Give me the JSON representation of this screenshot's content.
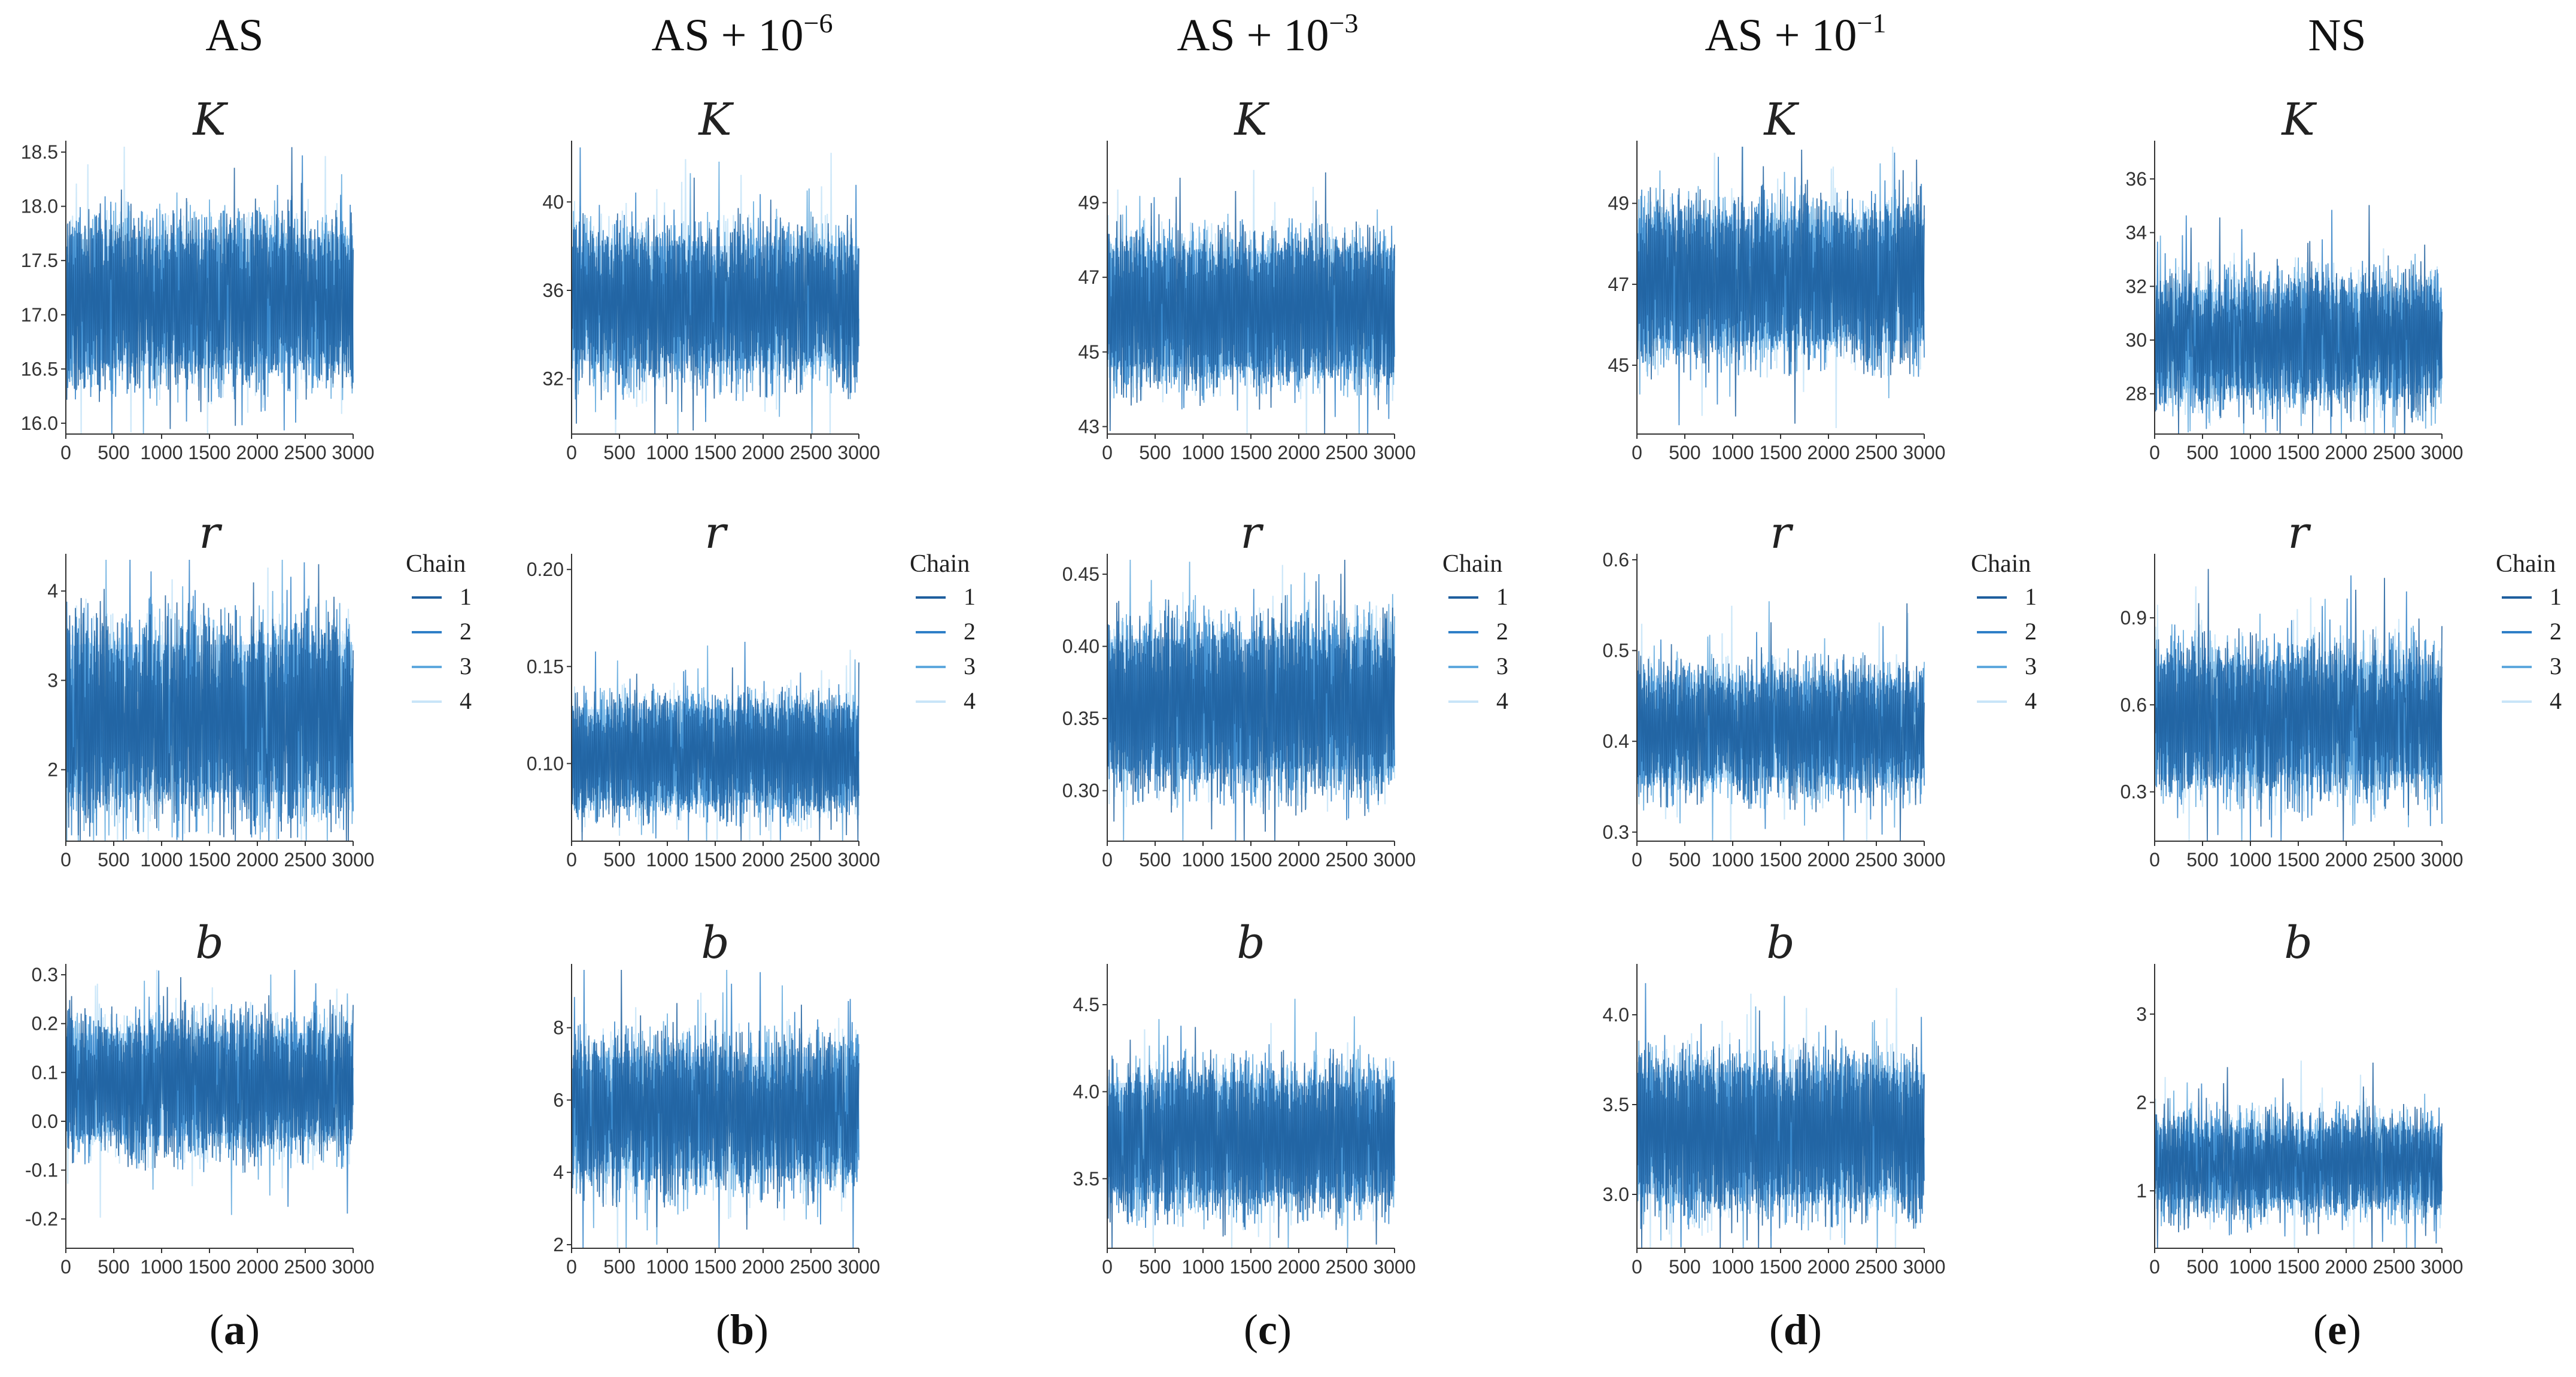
{
  "column_titles": [
    {
      "base": "AS",
      "sup": ""
    },
    {
      "base": "AS + 10",
      "sup": "−6"
    },
    {
      "base": "AS + 10",
      "sup": "−3"
    },
    {
      "base": "AS + 10",
      "sup": "−1"
    },
    {
      "base": "NS",
      "sup": ""
    }
  ],
  "panel_labels": [
    "a",
    "b",
    "c",
    "d",
    "e"
  ],
  "legend": {
    "title": "Chain",
    "entries": [
      "1",
      "2",
      "3",
      "4"
    ]
  },
  "colors": {
    "chain_1": "#1f5f9e",
    "chain_2": "#2e7fc7",
    "chain_3": "#5ea8dd",
    "chain_4": "#c9e5f8",
    "band": "#c7e3fb"
  },
  "chart_data": [
    {
      "type": "line",
      "column": "AS",
      "panel": "a",
      "title": "K",
      "xlim": [
        0,
        3000
      ],
      "x_ticks": [
        "0",
        "500",
        "1000",
        "1500",
        "2000",
        "2500",
        "3000"
      ],
      "ylim": [
        15.9,
        18.55
      ],
      "y_ticks": [
        "16.0",
        "16.5",
        "17.0",
        "17.5",
        "18.0",
        "18.5"
      ],
      "y_tick_values": [
        16.0,
        16.5,
        17.0,
        17.5,
        18.0,
        18.5
      ],
      "upper_mode": 17.7,
      "lower_mode": 16.55,
      "spread": 0.18,
      "series": [
        "1",
        "2",
        "3",
        "4"
      ]
    },
    {
      "type": "line",
      "column": "AS + 10^-6",
      "panel": "b",
      "title": "K",
      "xlim": [
        0,
        3000
      ],
      "x_ticks": [
        "0",
        "500",
        "1000",
        "1500",
        "2000",
        "2500",
        "3000"
      ],
      "ylim": [
        29.5,
        42.5
      ],
      "y_ticks": [
        "32",
        "36",
        "40"
      ],
      "y_tick_values": [
        32,
        36,
        40
      ],
      "upper_mode": 38.0,
      "lower_mode": 32.8,
      "spread": 0.9,
      "series": [
        "1",
        "2",
        "3",
        "4"
      ]
    },
    {
      "type": "line",
      "column": "AS + 10^-3",
      "panel": "c",
      "title": "K",
      "xlim": [
        0,
        3000
      ],
      "x_ticks": [
        "0",
        "500",
        "1000",
        "1500",
        "2000",
        "2500",
        "3000"
      ],
      "ylim": [
        42.8,
        50.5
      ],
      "y_ticks": [
        "43",
        "45",
        "47",
        "49"
      ],
      "y_tick_values": [
        43,
        45,
        47,
        49
      ],
      "upper_mode": 47.7,
      "lower_mode": 44.6,
      "spread": 0.45,
      "series": [
        "1",
        "2",
        "3",
        "4"
      ]
    },
    {
      "type": "line",
      "column": "AS + 10^-1",
      "panel": "d",
      "title": "K",
      "xlim": [
        0,
        3000
      ],
      "x_ticks": [
        "0",
        "500",
        "1000",
        "1500",
        "2000",
        "2500",
        "3000"
      ],
      "ylim": [
        43.3,
        50.4
      ],
      "y_ticks": [
        "45",
        "47",
        "49"
      ],
      "y_tick_values": [
        45,
        47,
        49
      ],
      "upper_mode": 48.6,
      "lower_mode": 45.6,
      "spread": 0.45,
      "series": [
        "1",
        "2",
        "3",
        "4"
      ]
    },
    {
      "type": "line",
      "column": "NS",
      "panel": "e",
      "title": "K",
      "xlim": [
        0,
        3000
      ],
      "x_ticks": [
        "0",
        "500",
        "1000",
        "1500",
        "2000",
        "2500",
        "3000"
      ],
      "ylim": [
        26.5,
        37.2
      ],
      "y_ticks": [
        "28",
        "30",
        "32",
        "34",
        "36"
      ],
      "y_tick_values": [
        28,
        30,
        32,
        34,
        36
      ],
      "upper_mode": 31.8,
      "lower_mode": 28.2,
      "spread": 0.65,
      "series": [
        "1",
        "2",
        "3",
        "4"
      ]
    },
    {
      "type": "line",
      "column": "AS",
      "panel": "a",
      "title": "r",
      "xlim": [
        0,
        3000
      ],
      "x_ticks": [
        "0",
        "500",
        "1000",
        "1500",
        "2000",
        "2500",
        "3000"
      ],
      "ylim": [
        1.2,
        4.35
      ],
      "y_ticks": [
        "2",
        "3",
        "4"
      ],
      "y_tick_values": [
        2,
        3,
        4
      ],
      "upper_mode": 3.4,
      "lower_mode": 1.75,
      "spread": 0.28,
      "series": [
        "1",
        "2",
        "3",
        "4"
      ]
    },
    {
      "type": "line",
      "column": "AS + 10^-6",
      "panel": "b",
      "title": "r",
      "xlim": [
        0,
        3000
      ],
      "x_ticks": [
        "0",
        "500",
        "1000",
        "1500",
        "2000",
        "2500",
        "3000"
      ],
      "ylim": [
        0.06,
        0.205
      ],
      "y_ticks": [
        "0.10",
        "0.15",
        "0.20"
      ],
      "y_tick_values": [
        0.1,
        0.15,
        0.2
      ],
      "upper_mode": 0.128,
      "lower_mode": 0.081,
      "spread": 0.007,
      "series": [
        "1",
        "2",
        "3",
        "4"
      ]
    },
    {
      "type": "line",
      "column": "AS + 10^-3",
      "panel": "c",
      "title": "r",
      "xlim": [
        0,
        3000
      ],
      "x_ticks": [
        "0",
        "500",
        "1000",
        "1500",
        "2000",
        "2500",
        "3000"
      ],
      "ylim": [
        0.265,
        0.46
      ],
      "y_ticks": [
        "0.30",
        "0.35",
        "0.40",
        "0.45"
      ],
      "y_tick_values": [
        0.3,
        0.35,
        0.4,
        0.45
      ],
      "upper_mode": 0.405,
      "lower_mode": 0.315,
      "spread": 0.014,
      "series": [
        "1",
        "2",
        "3",
        "4"
      ]
    },
    {
      "type": "line",
      "column": "AS + 10^-1",
      "panel": "d",
      "title": "r",
      "xlim": [
        0,
        3000
      ],
      "x_ticks": [
        "0",
        "500",
        "1000",
        "1500",
        "2000",
        "2500",
        "3000"
      ],
      "ylim": [
        0.29,
        0.6
      ],
      "y_ticks": [
        "0.3",
        "0.4",
        "0.5",
        "0.6"
      ],
      "y_tick_values": [
        0.3,
        0.4,
        0.5,
        0.6
      ],
      "upper_mode": 0.465,
      "lower_mode": 0.36,
      "spread": 0.018,
      "series": [
        "1",
        "2",
        "3",
        "4"
      ]
    },
    {
      "type": "line",
      "column": "NS",
      "panel": "e",
      "title": "r",
      "xlim": [
        0,
        3000
      ],
      "x_ticks": [
        "0",
        "500",
        "1000",
        "1500",
        "2000",
        "2500",
        "3000"
      ],
      "ylim": [
        0.13,
        1.1
      ],
      "y_ticks": [
        "0.3",
        "0.6",
        "0.9"
      ],
      "y_tick_values": [
        0.3,
        0.6,
        0.9
      ],
      "upper_mode": 0.74,
      "lower_mode": 0.36,
      "spread": 0.07,
      "series": [
        "1",
        "2",
        "3",
        "4"
      ]
    },
    {
      "type": "line",
      "column": "AS",
      "panel": "a",
      "title": "b",
      "xlim": [
        0,
        3000
      ],
      "x_ticks": [
        "0",
        "500",
        "1000",
        "1500",
        "2000",
        "2500",
        "3000"
      ],
      "ylim": [
        -0.26,
        0.31
      ],
      "y_ticks": [
        "-0.2",
        "-0.1",
        "0.0",
        "0.1",
        "0.2",
        "0.3"
      ],
      "y_tick_values": [
        -0.2,
        -0.1,
        0.0,
        0.1,
        0.2,
        0.3
      ],
      "upper_mode": 0.18,
      "lower_mode": -0.03,
      "spread": 0.035,
      "series": [
        "1",
        "2",
        "3",
        "4"
      ]
    },
    {
      "type": "line",
      "column": "AS + 10^-6",
      "panel": "b",
      "title": "b",
      "xlim": [
        0,
        3000
      ],
      "x_ticks": [
        "0",
        "500",
        "1000",
        "1500",
        "2000",
        "2500",
        "3000"
      ],
      "ylim": [
        1.9,
        9.6
      ],
      "y_ticks": [
        "2",
        "4",
        "6",
        "8"
      ],
      "y_tick_values": [
        2,
        4,
        6,
        8
      ],
      "upper_mode": 7.2,
      "lower_mode": 4.1,
      "spread": 0.55,
      "series": [
        "1",
        "2",
        "3",
        "4"
      ]
    },
    {
      "type": "line",
      "column": "AS + 10^-3",
      "panel": "c",
      "title": "b",
      "xlim": [
        0,
        3000
      ],
      "x_ticks": [
        "0",
        "500",
        "1000",
        "1500",
        "2000",
        "2500",
        "3000"
      ],
      "ylim": [
        3.1,
        4.7
      ],
      "y_ticks": [
        "3.5",
        "4.0",
        "4.5"
      ],
      "y_tick_values": [
        3.5,
        4.0,
        4.5
      ],
      "upper_mode": 4.05,
      "lower_mode": 3.42,
      "spread": 0.1,
      "series": [
        "1",
        "2",
        "3",
        "4"
      ]
    },
    {
      "type": "line",
      "column": "AS + 10^-1",
      "panel": "d",
      "title": "b",
      "xlim": [
        0,
        3000
      ],
      "x_ticks": [
        "0",
        "500",
        "1000",
        "1500",
        "2000",
        "2500",
        "3000"
      ],
      "ylim": [
        2.7,
        4.25
      ],
      "y_ticks": [
        "3.0",
        "3.5",
        "4.0"
      ],
      "y_tick_values": [
        3.0,
        3.5,
        4.0
      ],
      "upper_mode": 3.68,
      "lower_mode": 3.0,
      "spread": 0.1,
      "series": [
        "1",
        "2",
        "3",
        "4"
      ]
    },
    {
      "type": "line",
      "column": "NS",
      "panel": "e",
      "title": "b",
      "xlim": [
        0,
        3000
      ],
      "x_ticks": [
        "0",
        "500",
        "1000",
        "1500",
        "2000",
        "2500",
        "3000"
      ],
      "ylim": [
        0.35,
        3.5
      ],
      "y_ticks": [
        "1",
        "2",
        "3"
      ],
      "y_tick_values": [
        1,
        2,
        3
      ],
      "upper_mode": 1.7,
      "lower_mode": 0.9,
      "spread": 0.16,
      "series": [
        "1",
        "2",
        "3",
        "4"
      ]
    }
  ]
}
